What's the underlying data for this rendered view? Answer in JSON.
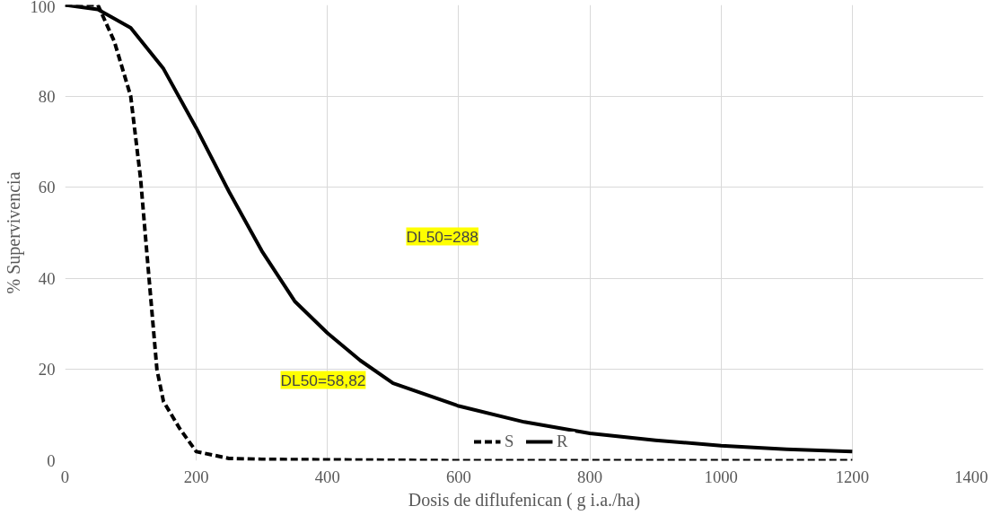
{
  "chart_data": {
    "type": "line",
    "xlabel": "Dosis de diflufenican ( g i.a./ha)",
    "ylabel": "% Supervivencia",
    "xlim": [
      0,
      1400
    ],
    "xticks": [
      0,
      200,
      400,
      600,
      800,
      1000,
      1200,
      1400
    ],
    "ylim": [
      0,
      100
    ],
    "yticks": [
      0,
      20,
      40,
      60,
      80,
      100
    ],
    "grid": true,
    "legend": "bottom",
    "series": [
      {
        "name": "S",
        "color": "#000000",
        "line_style": "dashed",
        "x": [
          0,
          50,
          75,
          100,
          115,
          125,
          140,
          150,
          175,
          200,
          250,
          300,
          400,
          600,
          800,
          1000,
          1200
        ],
        "values": [
          100,
          100,
          92,
          80,
          62,
          45,
          20,
          13,
          7,
          2,
          0.5,
          0.3,
          0.2,
          0,
          0,
          0,
          0
        ]
      },
      {
        "name": "R",
        "color": "#000000",
        "line_style": "solid",
        "x": [
          0,
          50,
          100,
          150,
          200,
          250,
          300,
          350,
          400,
          450,
          500,
          600,
          700,
          800,
          900,
          1000,
          1100,
          1200
        ],
        "values": [
          100,
          99,
          95,
          86,
          73,
          59,
          46,
          35,
          28,
          22,
          17,
          12,
          8.5,
          6,
          4.5,
          3.3,
          2.5,
          2
        ]
      }
    ],
    "annotations": [
      "DL50=288",
      "DL50=58,82"
    ]
  }
}
